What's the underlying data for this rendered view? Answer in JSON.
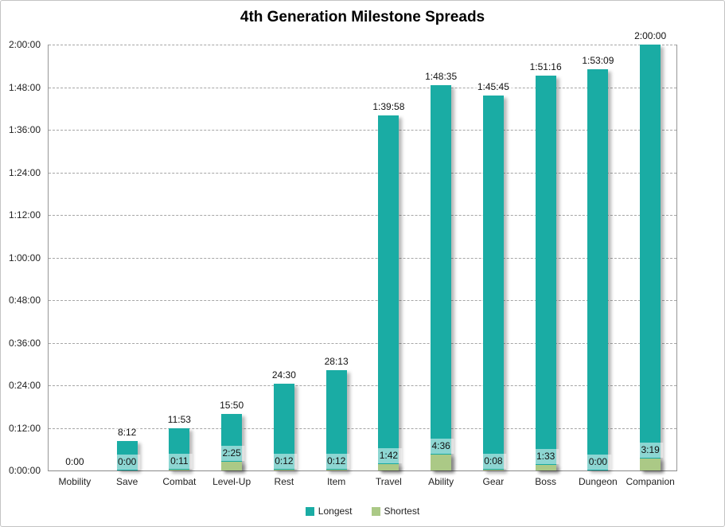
{
  "frame": {
    "background": "#FFFFFF",
    "border_color": "#C3C3C3"
  },
  "chart_data": {
    "type": "bar",
    "title": "4th Generation Milestone Spreads",
    "categories": [
      "Mobility",
      "Save",
      "Combat",
      "Level-Up",
      "Rest",
      "Item",
      "Travel",
      "Ability",
      "Gear",
      "Boss",
      "Dungeon",
      "Companion"
    ],
    "series": [
      {
        "name": "Longest",
        "color": "#1AACA4",
        "labels": [
          "0:00",
          "8:12",
          "11:53",
          "15:50",
          "24:30",
          "28:13",
          "1:39:58",
          "1:48:35",
          "1:45:45",
          "1:51:16",
          "1:53:09",
          "2:00:00"
        ],
        "values_seconds": [
          0,
          492,
          713,
          950,
          1470,
          1693,
          5998,
          6515,
          6345,
          6676,
          6789,
          7200
        ]
      },
      {
        "name": "Shortest",
        "color": "#ABC986",
        "labels": [
          null,
          "0:00",
          "0:11",
          "2:25",
          "0:12",
          "0:12",
          "1:42",
          "4:36",
          "0:08",
          "1:33",
          "0:00",
          "3:19"
        ],
        "values_seconds": [
          null,
          0,
          11,
          145,
          12,
          12,
          102,
          276,
          8,
          93,
          0,
          199
        ]
      }
    ],
    "ylim_seconds": [
      0,
      7200
    ],
    "ytick_interval_seconds": 720,
    "ytick_labels": [
      "2:00:00",
      "1:48:00",
      "1:36:00",
      "1:24:00",
      "1:12:00",
      "1:00:00",
      "0:48:00",
      "0:36:00",
      "0:24:00",
      "0:12:00",
      "0:00:00"
    ],
    "grid": "horizontal-dashed",
    "gridline_color": "#A6A6A6",
    "label_box_fill": "rgba(255,255,255,0.5)",
    "legend_position": "bottom",
    "bar_overlap": "shortest drawn in front of longest"
  }
}
